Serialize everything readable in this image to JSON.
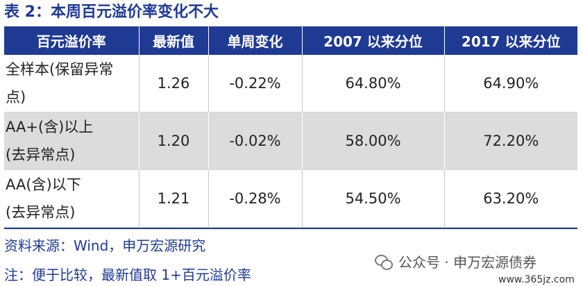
{
  "title": "表 2：本周百元溢价率变化不大",
  "table": {
    "headers": [
      "百元溢价率",
      "最新值",
      "单周变化",
      "2007 以来分位",
      "2017 以来分位"
    ],
    "rows": [
      {
        "label_line1": "全样本(保留异常",
        "label_line2": "点)",
        "latest": "1.26",
        "weekly_change": "-0.22%",
        "pct_since_2007": "64.80%",
        "pct_since_2017": "64.90%"
      },
      {
        "label_line1": "AA+(含)以上",
        "label_line2": "(去异常点)",
        "latest": "1.20",
        "weekly_change": "-0.02%",
        "pct_since_2007": "58.00%",
        "pct_since_2017": "72.20%"
      },
      {
        "label_line1": "AA(含)以下",
        "label_line2": "(去异常点)",
        "latest": "1.21",
        "weekly_change": "-0.28%",
        "pct_since_2007": "54.50%",
        "pct_since_2017": "63.20%"
      }
    ]
  },
  "source": "资料来源：Wind，申万宏源研究",
  "note": "注：便于比较，最新值取 1+百元溢价率",
  "watermark": {
    "text": "公众号 · 申万宏源债券",
    "icon": "wechat-icon",
    "url": "www.365jz.com"
  },
  "colors": {
    "brand_blue": "#1f3a93",
    "shaded_row": "#dcdcdc"
  }
}
